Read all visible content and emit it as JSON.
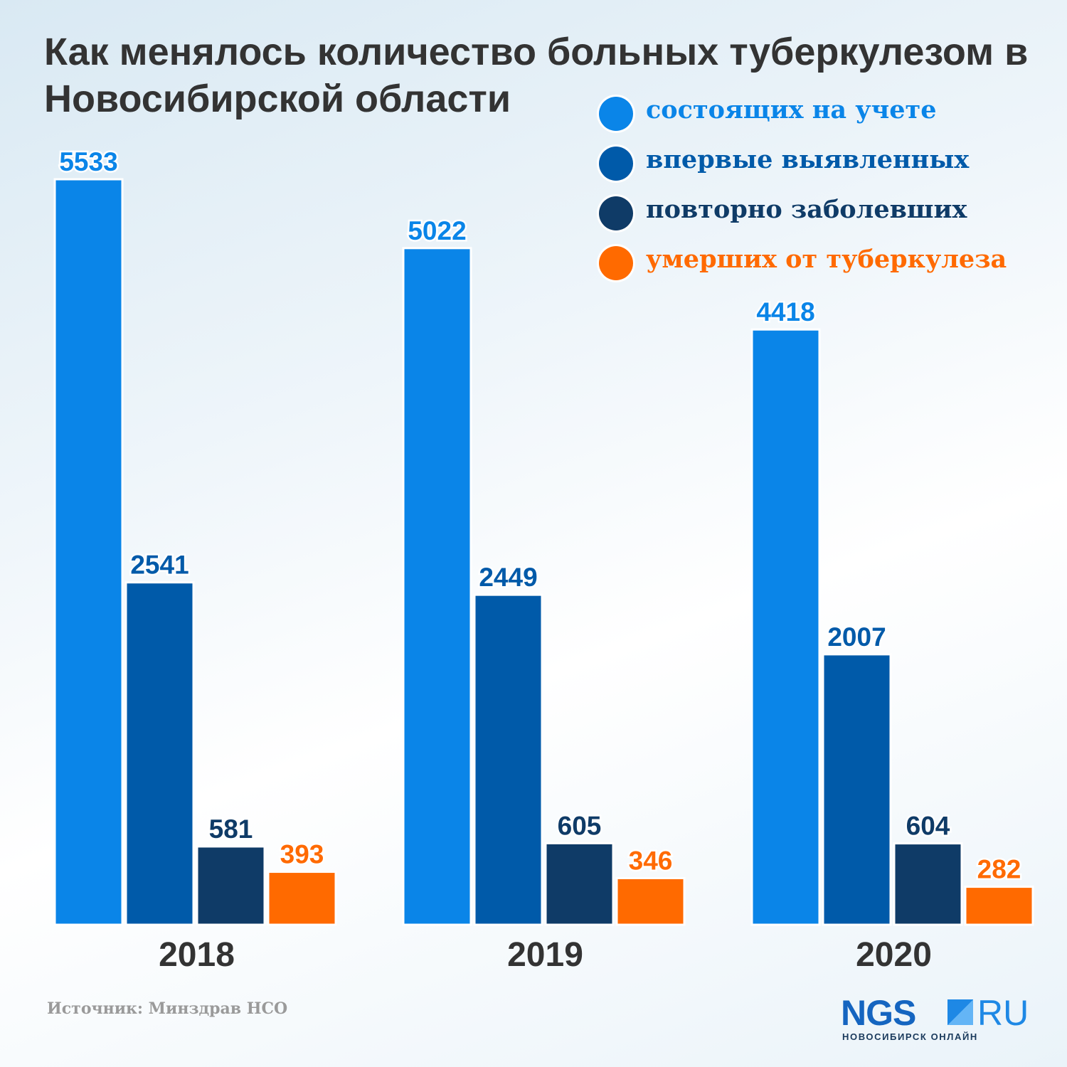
{
  "chart_data": {
    "type": "bar",
    "title": "Как менялось количество больных туберкулезом в Новосибирской области",
    "categories": [
      "2018",
      "2019",
      "2020"
    ],
    "series": [
      {
        "name": "состоящих на учете",
        "color": "#0a85e8",
        "values": [
          5533,
          5022,
          4418
        ]
      },
      {
        "name": "впервые выявленных",
        "color": "#005aa9",
        "values": [
          2541,
          2449,
          2007
        ]
      },
      {
        "name": "повторно заболевших",
        "color": "#0f3b67",
        "values": [
          581,
          605,
          604
        ]
      },
      {
        "name": "умерших от туберкулеза",
        "color": "#ff6a00",
        "values": [
          393,
          346,
          282
        ]
      }
    ],
    "ylim": [
      0,
      5533
    ],
    "grid": false,
    "legend": "top-right",
    "data_labels": true
  },
  "source": "Источник: Минздрав НСО",
  "logo": {
    "main": "NGS",
    "suffix": "RU",
    "tagline": "НОВОСИБИРСК ОНЛАЙН",
    "colors": {
      "main": "#1565c0",
      "suffix": "#1e88e5"
    }
  }
}
